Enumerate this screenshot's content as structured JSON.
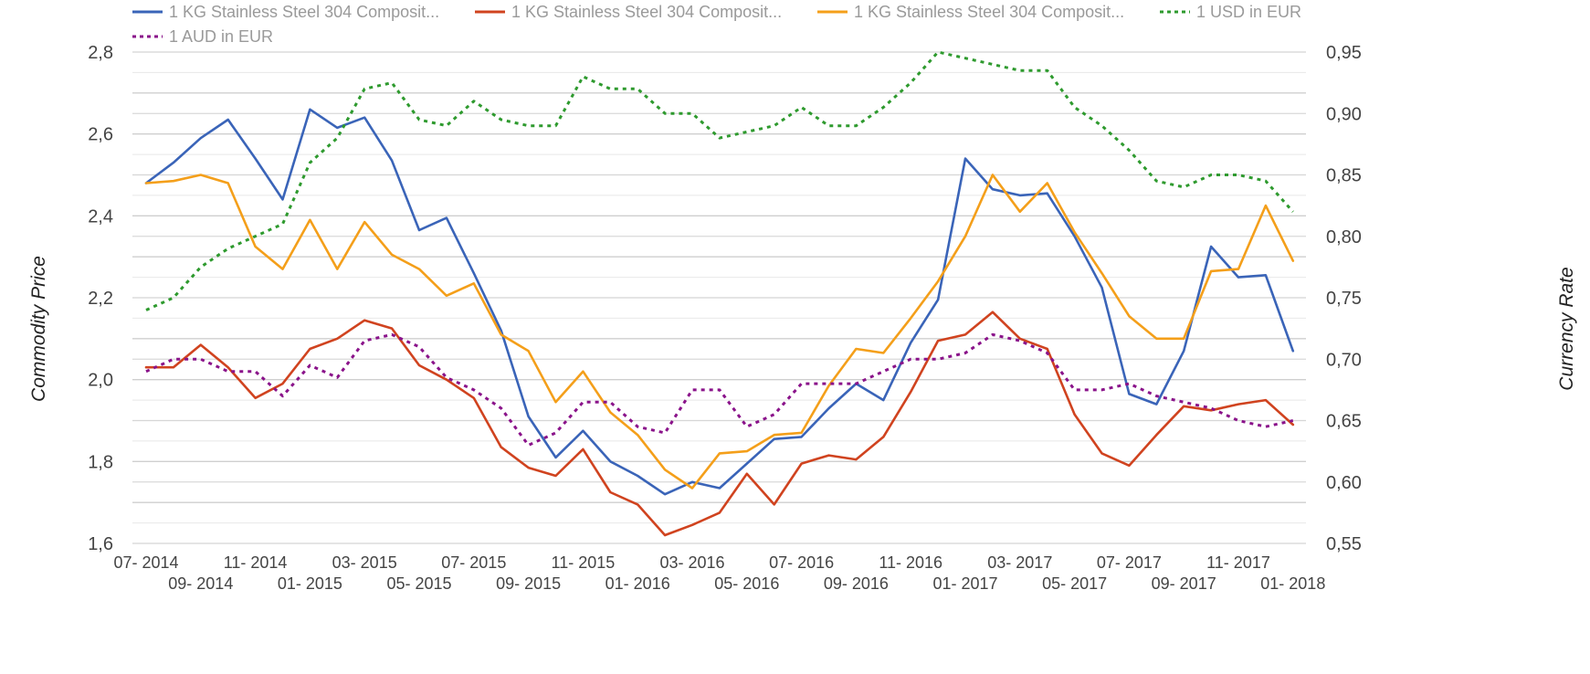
{
  "chart_data": {
    "type": "line",
    "left_axis_title": "Commodity Price",
    "right_axis_title": "Currency Rate",
    "left_ylim": [
      1.6,
      2.8
    ],
    "left_ticks": [
      "1,6",
      "1,8",
      "2,0",
      "2,2",
      "2,4",
      "2,6",
      "2,8"
    ],
    "right_ylim": [
      0.55,
      0.95
    ],
    "right_ticks": [
      "0,55",
      "0,60",
      "0,65",
      "0,70",
      "0,75",
      "0,80",
      "0,85",
      "0,90",
      "0,95"
    ],
    "grid": true,
    "legend_position": "top",
    "x_tick_labels": [
      "07- 2014",
      "09- 2014",
      "11- 2014",
      "01- 2015",
      "03- 2015",
      "05- 2015",
      "07- 2015",
      "09- 2015",
      "11- 2015",
      "01- 2016",
      "03- 2016",
      "05- 2016",
      "07- 2016",
      "09- 2016",
      "11- 2016",
      "01- 2017",
      "03- 2017",
      "05- 2017",
      "07- 2017",
      "09- 2017",
      "11- 2017",
      "01- 2018"
    ],
    "series": [
      {
        "name": "1 KG Stainless Steel 304 Composit...",
        "color": "#3a64b8",
        "axis": "left",
        "dash": "solid",
        "values": [
          2.48,
          2.53,
          2.59,
          2.635,
          2.54,
          2.44,
          2.66,
          2.615,
          2.64,
          2.535,
          2.365,
          2.395,
          2.26,
          2.12,
          1.91,
          1.81,
          1.875,
          1.8,
          1.765,
          1.72,
          1.75,
          1.735,
          1.795,
          1.855,
          1.86,
          1.93,
          1.99,
          1.95,
          2.09,
          2.195,
          2.54,
          2.465,
          2.45,
          2.455,
          2.35,
          2.225,
          1.965,
          1.94,
          2.07,
          2.325,
          2.25,
          2.255,
          2.07
        ]
      },
      {
        "name": "1 KG Stainless Steel 304 Composit...",
        "color": "#d0431f",
        "axis": "left",
        "dash": "solid",
        "values": [
          2.03,
          2.03,
          2.085,
          2.03,
          1.955,
          1.99,
          2.075,
          2.1,
          2.145,
          2.125,
          2.035,
          2.0,
          1.955,
          1.835,
          1.785,
          1.765,
          1.83,
          1.725,
          1.695,
          1.62,
          1.645,
          1.675,
          1.77,
          1.695,
          1.795,
          1.815,
          1.805,
          1.86,
          1.97,
          2.095,
          2.11,
          2.165,
          2.1,
          2.075,
          1.915,
          1.82,
          1.79,
          1.865,
          1.935,
          1.925,
          1.94,
          1.95,
          1.89
        ]
      },
      {
        "name": "1 KG Stainless Steel 304 Composit...",
        "color": "#f49f1a",
        "axis": "left",
        "dash": "solid",
        "values": [
          2.48,
          2.485,
          2.5,
          2.48,
          2.325,
          2.27,
          2.39,
          2.27,
          2.385,
          2.305,
          2.27,
          2.205,
          2.235,
          2.11,
          2.07,
          1.945,
          2.02,
          1.92,
          1.865,
          1.78,
          1.735,
          1.82,
          1.825,
          1.865,
          1.87,
          1.985,
          2.075,
          2.065,
          2.15,
          2.24,
          2.35,
          2.5,
          2.41,
          2.48,
          2.36,
          2.26,
          2.155,
          2.1,
          2.1,
          2.265,
          2.27,
          2.425,
          2.29
        ]
      },
      {
        "name": "1 USD in EUR",
        "color": "#2e9a2e",
        "axis": "right",
        "dash": "dotted",
        "values": [
          0.74,
          0.75,
          0.775,
          0.79,
          0.8,
          0.81,
          0.86,
          0.88,
          0.92,
          0.925,
          0.895,
          0.89,
          0.91,
          0.895,
          0.89,
          0.89,
          0.93,
          0.92,
          0.92,
          0.9,
          0.9,
          0.88,
          0.885,
          0.89,
          0.905,
          0.89,
          0.89,
          0.905,
          0.925,
          0.95,
          0.945,
          0.94,
          0.935,
          0.935,
          0.905,
          0.89,
          0.87,
          0.845,
          0.84,
          0.85,
          0.85,
          0.845,
          0.82
        ]
      },
      {
        "name": "1 AUD in EUR",
        "color": "#8a138a",
        "axis": "right",
        "dash": "dotted",
        "values": [
          0.69,
          0.7,
          0.7,
          0.69,
          0.69,
          0.67,
          0.695,
          0.685,
          0.715,
          0.72,
          0.71,
          0.685,
          0.675,
          0.66,
          0.63,
          0.64,
          0.665,
          0.665,
          0.645,
          0.64,
          0.675,
          0.675,
          0.645,
          0.655,
          0.68,
          0.68,
          0.68,
          0.69,
          0.7,
          0.7,
          0.705,
          0.72,
          0.715,
          0.705,
          0.675,
          0.675,
          0.68,
          0.67,
          0.665,
          0.66,
          0.65,
          0.645,
          0.65
        ]
      }
    ]
  }
}
